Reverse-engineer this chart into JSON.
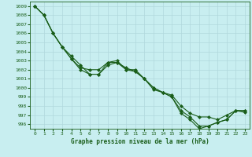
{
  "title": "Graphe pression niveau de la mer (hPa)",
  "bg_color": "#c8eef0",
  "grid_color": "#b0d8dc",
  "line_color": "#1a5e1a",
  "xlim": [
    -0.5,
    23.5
  ],
  "ylim": [
    995.5,
    1009.5
  ],
  "yticks": [
    996,
    997,
    998,
    999,
    1000,
    1001,
    1002,
    1003,
    1004,
    1005,
    1006,
    1007,
    1008,
    1009
  ],
  "xticks": [
    0,
    1,
    2,
    3,
    4,
    5,
    6,
    7,
    8,
    9,
    10,
    11,
    12,
    13,
    14,
    15,
    16,
    17,
    18,
    19,
    20,
    21,
    22,
    23
  ],
  "series": [
    [
      1009,
      1008,
      1006,
      1004.5,
      1003.2,
      1002,
      1001.5,
      1001.5,
      1002.5,
      1002.8,
      1002,
      1001.8,
      1001,
      1000,
      999.5,
      999,
      997.5,
      996.8,
      995.8,
      995.8,
      996.2,
      996.5,
      997.5,
      997.5
    ],
    [
      1009,
      1008,
      1006,
      1004.5,
      1003.2,
      1002.2,
      1002,
      1002,
      1002.8,
      1002.8,
      1002.2,
      1001.8,
      1001,
      1000,
      999.5,
      999.2,
      998,
      997.2,
      996.8,
      996.8,
      996.5,
      997,
      997.5,
      997.5
    ],
    [
      1009,
      1008,
      1006,
      1004.5,
      1003.5,
      1002.5,
      1001.5,
      1001.5,
      1002.8,
      1003,
      1002,
      1002,
      1001,
      999.8,
      999.5,
      999,
      997.2,
      996.5,
      995.5,
      995.8,
      996.2,
      996.5,
      997.5,
      997.3
    ]
  ],
  "marker": "D",
  "markersize": 2,
  "linewidth": 0.8,
  "label_fontsize": 4.5,
  "title_fontsize": 5.5
}
